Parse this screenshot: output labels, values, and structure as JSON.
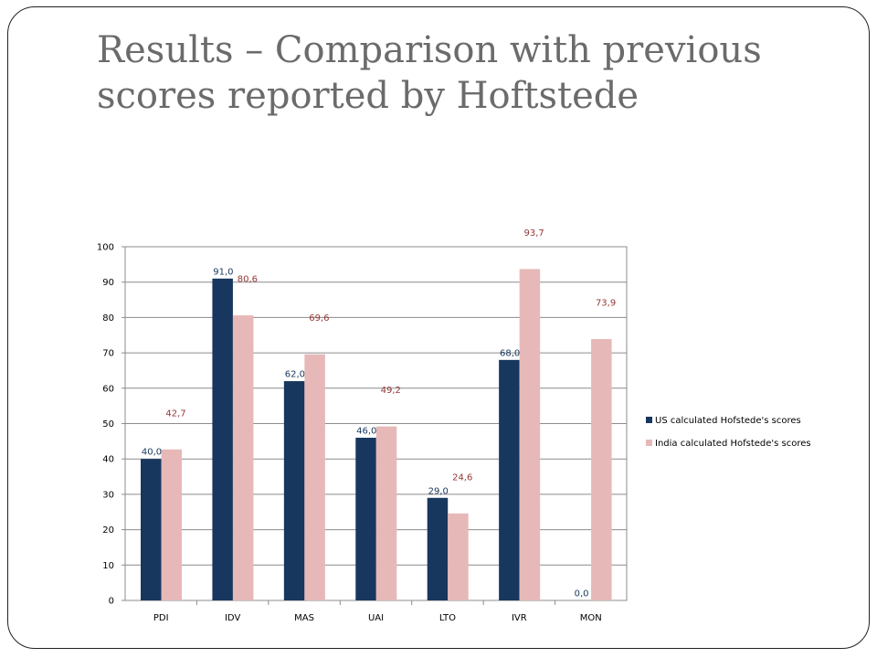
{
  "slide": {
    "title_line1": "Results – Comparison with previous",
    "title_line2": "scores reported by Hoftstede"
  },
  "chart_data": {
    "type": "bar",
    "categories": [
      "PDI",
      "IDV",
      "MAS",
      "UAI",
      "LTO",
      "IVR",
      "MON"
    ],
    "series": [
      {
        "name": "US calculated Hofstede's scores",
        "values": [
          40.0,
          91.0,
          62.0,
          46.0,
          29.0,
          68.0,
          0.0
        ],
        "labels": [
          "40,0",
          "91,0",
          "62,0",
          "46,0",
          "29,0",
          "68,0",
          "0,0"
        ],
        "color": "#17375e",
        "label_color": "#17375e"
      },
      {
        "name": "India calculated Hofstede's scores",
        "values": [
          42.7,
          80.6,
          69.6,
          49.2,
          24.6,
          93.7,
          73.9
        ],
        "labels": [
          "42,7",
          "80,6",
          "69,6",
          "49,2",
          "24,6",
          "93,7",
          "73,9"
        ],
        "color": "#e6b9b8",
        "label_color": "#953735"
      }
    ],
    "yticks": [
      "0",
      "10",
      "20",
      "30",
      "40",
      "50",
      "60",
      "70",
      "80",
      "90",
      "100"
    ],
    "ylim": [
      0,
      100
    ],
    "ystep": 10,
    "grid": true,
    "legend": "right"
  }
}
